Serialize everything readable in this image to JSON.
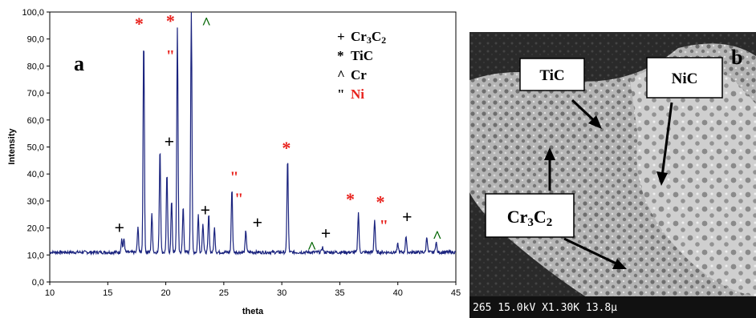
{
  "chart_data": {
    "type": "line",
    "panel_label": "a",
    "xlabel": "theta",
    "ylabel": "Intensity",
    "xlim": [
      10,
      45
    ],
    "ylim": [
      0,
      100
    ],
    "x_ticks": [
      10,
      15,
      20,
      25,
      30,
      35,
      40,
      45
    ],
    "y_ticks": [
      "0,0",
      "10,0",
      "20,0",
      "30,0",
      "40,0",
      "50,0",
      "60,0",
      "70,0",
      "80,0",
      "90,0",
      "100,0"
    ],
    "baseline": 11,
    "peaks": [
      {
        "x": 16.2,
        "y": 16
      },
      {
        "x": 16.4,
        "y": 16
      },
      {
        "x": 17.6,
        "y": 20
      },
      {
        "x": 18.1,
        "y": 91
      },
      {
        "x": 18.8,
        "y": 25
      },
      {
        "x": 19.5,
        "y": 50
      },
      {
        "x": 20.1,
        "y": 40
      },
      {
        "x": 20.5,
        "y": 30
      },
      {
        "x": 21.0,
        "y": 94
      },
      {
        "x": 21.5,
        "y": 28
      },
      {
        "x": 22.2,
        "y": 100
      },
      {
        "x": 22.8,
        "y": 25
      },
      {
        "x": 23.2,
        "y": 22
      },
      {
        "x": 23.7,
        "y": 25
      },
      {
        "x": 24.2,
        "y": 20
      },
      {
        "x": 25.7,
        "y": 35
      },
      {
        "x": 26.9,
        "y": 19
      },
      {
        "x": 30.5,
        "y": 46
      },
      {
        "x": 33.5,
        "y": 13
      },
      {
        "x": 36.6,
        "y": 26
      },
      {
        "x": 38.0,
        "y": 23
      },
      {
        "x": 40.0,
        "y": 14
      },
      {
        "x": 40.7,
        "y": 17
      },
      {
        "x": 42.5,
        "y": 17
      },
      {
        "x": 43.3,
        "y": 15
      }
    ],
    "legend": [
      {
        "symbol": "+",
        "label": "Cr3C2",
        "color": "#000000"
      },
      {
        "symbol": "*",
        "label": "TiC",
        "color": "#000000"
      },
      {
        "symbol": "^",
        "label": "Cr",
        "color": "#000000"
      },
      {
        "symbol": "\"",
        "label": "Ni",
        "color": "#e8211c"
      }
    ],
    "markers": [
      {
        "symbol": "+",
        "x": 16.0,
        "y": 20,
        "color": "#000000"
      },
      {
        "symbol": "*",
        "x": 17.7,
        "y": 97,
        "color": "#e8211c"
      },
      {
        "symbol": "*",
        "x": 20.4,
        "y": 98,
        "color": "#e8211c"
      },
      {
        "symbol": "\"",
        "x": 20.4,
        "y": 84,
        "color": "#e8211c"
      },
      {
        "symbol": "+",
        "x": 20.3,
        "y": 52,
        "color": "#000000"
      },
      {
        "symbol": "^",
        "x": 23.5,
        "y": 98,
        "color": "#006400"
      },
      {
        "symbol": "+",
        "x": 23.4,
        "y": 26.5,
        "color": "#000000"
      },
      {
        "symbol": "\"",
        "x": 25.9,
        "y": 39,
        "color": "#e8211c"
      },
      {
        "symbol": "\"",
        "x": 26.3,
        "y": 31,
        "color": "#e8211c"
      },
      {
        "symbol": "+",
        "x": 27.9,
        "y": 22,
        "color": "#000000"
      },
      {
        "symbol": "*",
        "x": 30.4,
        "y": 51,
        "color": "#e8211c"
      },
      {
        "symbol": "^",
        "x": 32.6,
        "y": 15,
        "color": "#006400"
      },
      {
        "symbol": "+",
        "x": 33.8,
        "y": 18,
        "color": "#000000"
      },
      {
        "symbol": "*",
        "x": 35.9,
        "y": 32,
        "color": "#e8211c"
      },
      {
        "symbol": "*",
        "x": 38.5,
        "y": 31,
        "color": "#e8211c"
      },
      {
        "symbol": "\"",
        "x": 38.8,
        "y": 21,
        "color": "#e8211c"
      },
      {
        "symbol": "+",
        "x": 40.8,
        "y": 24,
        "color": "#000000"
      },
      {
        "symbol": "^",
        "x": 43.4,
        "y": 19,
        "color": "#006400"
      }
    ]
  },
  "sem": {
    "panel_label": "b",
    "labels": {
      "tic": "TiC",
      "nic": "NiC",
      "cr3c2": "Cr3C2"
    },
    "scale_text": "265 15.0kV X1.30K 13.8µ"
  }
}
